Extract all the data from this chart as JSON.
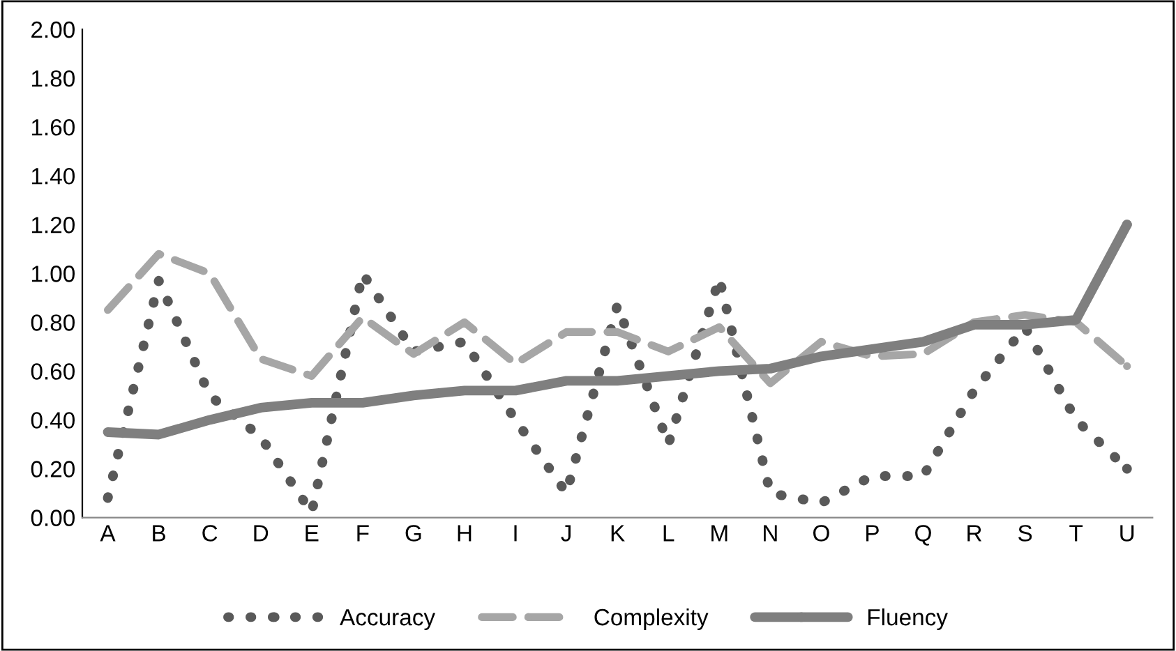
{
  "chart_data": {
    "type": "line",
    "categories": [
      "A",
      "B",
      "C",
      "D",
      "E",
      "F",
      "G",
      "H",
      "I",
      "J",
      "K",
      "L",
      "M",
      "N",
      "O",
      "P",
      "Q",
      "R",
      "S",
      "T",
      "U"
    ],
    "series": [
      {
        "name": "Accuracy",
        "color": "#595959",
        "line_style": "dotted",
        "values": [
          0.08,
          0.97,
          0.5,
          0.33,
          0.02,
          1.0,
          0.68,
          0.72,
          0.4,
          0.1,
          0.87,
          0.3,
          0.98,
          0.1,
          0.06,
          0.17,
          0.17,
          0.52,
          0.78,
          0.4,
          0.2
        ]
      },
      {
        "name": "Complexity",
        "color": "#a6a6a6",
        "line_style": "dashed",
        "values": [
          0.85,
          1.08,
          1.0,
          0.65,
          0.58,
          0.82,
          0.67,
          0.8,
          0.63,
          0.76,
          0.76,
          0.68,
          0.78,
          0.55,
          0.72,
          0.66,
          0.67,
          0.8,
          0.83,
          0.8,
          0.62
        ]
      },
      {
        "name": "Fluency",
        "color": "#7f7f7f",
        "line_style": "solid",
        "values": [
          0.35,
          0.34,
          0.4,
          0.45,
          0.47,
          0.47,
          0.5,
          0.52,
          0.52,
          0.56,
          0.56,
          0.58,
          0.6,
          0.61,
          0.66,
          0.69,
          0.72,
          0.79,
          0.79,
          0.81,
          1.2
        ]
      }
    ],
    "ylim": [
      0,
      2
    ],
    "yticks": [
      {
        "value": 0,
        "label": "0.00"
      },
      {
        "value": 0.2,
        "label": "0.20"
      },
      {
        "value": 0.4,
        "label": "0.40"
      },
      {
        "value": 0.6,
        "label": "0.60"
      },
      {
        "value": 0.8,
        "label": "0.80"
      },
      {
        "value": 1.0,
        "label": "1.00"
      },
      {
        "value": 1.2,
        "label": "1.20"
      },
      {
        "value": 1.4,
        "label": "1.40"
      },
      {
        "value": 1.6,
        "label": "1.60"
      },
      {
        "value": 1.8,
        "label": "1.80"
      },
      {
        "value": 2.0,
        "label": "2.00"
      }
    ],
    "grid": false,
    "legend": "bottom"
  }
}
